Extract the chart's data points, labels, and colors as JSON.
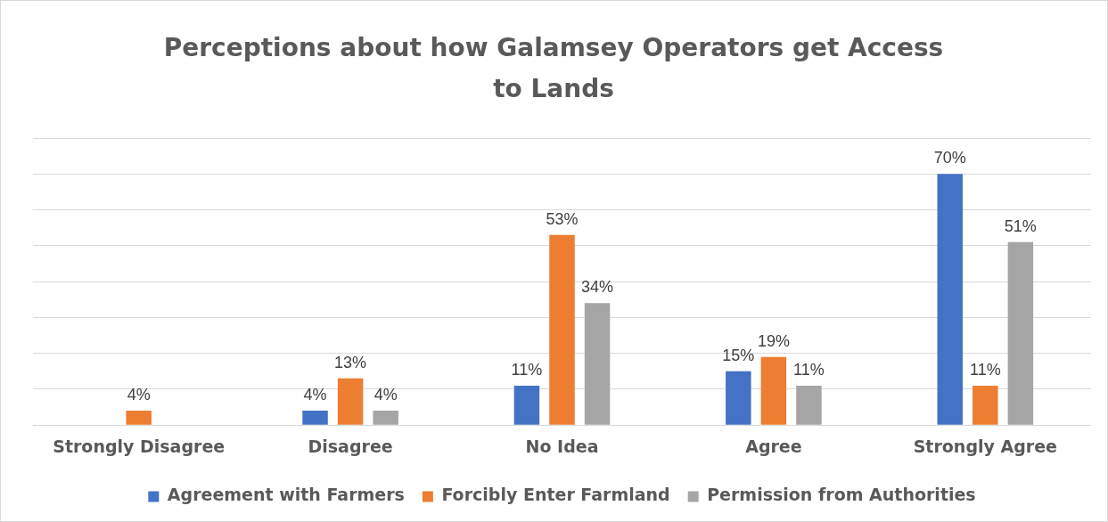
{
  "chart_data": {
    "type": "bar",
    "title": "Perceptions about how Galamsey Operators get Access to Lands",
    "categories": [
      "Strongly Disagree",
      "Disagree",
      "No Idea",
      "Agree",
      "Strongly Agree"
    ],
    "series": [
      {
        "name": "Agreement with Farmers",
        "color": "#4472c4",
        "values": [
          null,
          4,
          11,
          15,
          70
        ],
        "value_labels": [
          null,
          "4%",
          "11%",
          "15%",
          "70%"
        ]
      },
      {
        "name": "Forcibly Enter Farmland",
        "color": "#ed7d31",
        "values": [
          4,
          13,
          53,
          19,
          11
        ],
        "value_labels": [
          "4%",
          "13%",
          "53%",
          "19%",
          "11%"
        ]
      },
      {
        "name": "Permission from Authorities",
        "color": "#a5a5a5",
        "values": [
          null,
          4,
          34,
          11,
          51
        ],
        "value_labels": [
          null,
          "4%",
          "34%",
          "11%",
          "51%"
        ]
      }
    ],
    "ylim": [
      0,
      80
    ],
    "yticks": [
      {
        "value": 0,
        "label": null
      },
      {
        "value": 10,
        "label": null
      },
      {
        "value": 20,
        "label": null
      },
      {
        "value": 30,
        "label": null
      },
      {
        "value": 40,
        "label": null
      },
      {
        "value": 50,
        "label": null
      },
      {
        "value": 60,
        "label": null
      },
      {
        "value": 70,
        "label": null
      },
      {
        "value": 80,
        "label": null
      }
    ],
    "grid": "y",
    "legend": "bottom",
    "tick_labels": "x"
  }
}
